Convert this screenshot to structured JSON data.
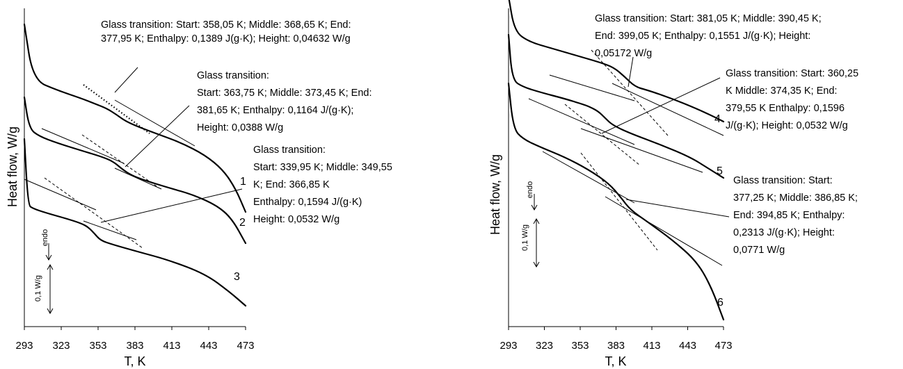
{
  "chart_data": [
    {
      "type": "line",
      "xlabel": "T, K",
      "ylabel": "Heat flow, W/g",
      "xticks": [
        "293",
        "323",
        "353",
        "383",
        "413",
        "443",
        "473"
      ],
      "xlim": [
        293,
        473
      ],
      "direction_label": "endo",
      "scale_label": "0,1 W/g",
      "series": [
        {
          "name": "1",
          "x": [
            293,
            300,
            320,
            340,
            350,
            360,
            368,
            375,
            385,
            400,
            420,
            440,
            455,
            465,
            473
          ],
          "y": [
            435,
            355,
            340,
            328,
            321,
            314,
            305,
            296,
            288,
            278,
            265,
            247,
            225,
            198,
            165
          ]
        },
        {
          "name": "2",
          "x": [
            293,
            297,
            305,
            320,
            340,
            355,
            365,
            373,
            380,
            390,
            410,
            430,
            450,
            462,
            473
          ],
          "y": [
            330,
            285,
            274,
            264,
            253,
            245,
            238,
            226,
            218,
            211,
            200,
            190,
            174,
            155,
            120
          ]
        },
        {
          "name": "3",
          "x": [
            293,
            296,
            300,
            310,
            330,
            340,
            345,
            350,
            355,
            365,
            385,
            410,
            440,
            460,
            473
          ],
          "y": [
            270,
            175,
            170,
            164,
            154,
            148,
            143,
            134,
            124,
            118,
            108,
            96,
            76,
            50,
            30
          ]
        }
      ],
      "annotations": [
        "Glass transition: Start: 358,05 K; Middle: 368,65 K; End: 377,95 K; Enthalpy: 0,1389 J(g·K); Height: 0,04632 W/g",
        "Glass transition: Start: 363,75 K; Middle: 373,45 K; End: 381,65 K; Enthalpy: 0,1164 J/(g·K); Height: 0,0388 W/g",
        "Glass transition: Start: 339,95 K; Middle: 349,55 K; End: 366,85 K Enthalpy: 0,1594 J/(g·K) Height: 0,0532 W/g"
      ]
    },
    {
      "type": "line",
      "xlabel": "T, K",
      "ylabel": "Heat flow, W/g",
      "xticks": [
        "293",
        "323",
        "353",
        "383",
        "413",
        "443",
        "473"
      ],
      "xlim": [
        293,
        473
      ],
      "direction_label": "endo",
      "scale_label": "0,1 W/g",
      "series": [
        {
          "name": "4",
          "x": [
            293,
            298,
            310,
            330,
            350,
            370,
            381,
            390,
            399,
            410,
            430,
            450,
            465,
            473
          ],
          "y": [
            475,
            425,
            410,
            400,
            390,
            380,
            373,
            360,
            345,
            340,
            328,
            314,
            302,
            295
          ]
        },
        {
          "name": "5",
          "x": [
            293,
            296,
            305,
            320,
            340,
            355,
            360,
            368,
            374,
            380,
            395,
            420,
            445,
            460,
            473
          ],
          "y": [
            420,
            355,
            345,
            337,
            328,
            320,
            317,
            310,
            300,
            290,
            278,
            262,
            244,
            228,
            214
          ]
        },
        {
          "name": "6",
          "x": [
            293,
            297,
            305,
            320,
            340,
            360,
            377,
            387,
            395,
            410,
            430,
            450,
            462,
            473
          ],
          "y": [
            350,
            285,
            270,
            258,
            244,
            226,
            206,
            186,
            168,
            150,
            125,
            95,
            60,
            10
          ]
        }
      ],
      "annotations": [
        "Glass transition: Start: 381,05 K; Middle: 390,45 K; End: 399,05 K; Enthalpy: 0,1551 J/(g·K); Height: 0,05172 W/g",
        "Glass transition: Start: 360,25 K Middle: 374,35 K; End: 379,55 K Enthalpy: 0,1596 J/(g·K); Height: 0,0532 W/g",
        "Glass transition: Start: 377,25 K; Middle: 386,85 K; End: 394,85 K; Enthalpy: 0,2313 J/(g·K); Height: 0,0771 W/g"
      ]
    }
  ],
  "left": {
    "ann1": [
      "Glass transition: Start: 358,05 K; Middle: 368,65 K; End:",
      "377,95 K; Enthalpy: 0,1389 J(g·K); Height: 0,04632 W/g"
    ],
    "ann2": [
      "Glass transition:",
      "Start: 363,75 K; Middle: 373,45 K; End:",
      "381,65 K; Enthalpy: 0,1164 J/(g·K);",
      "Height: 0,0388 W/g"
    ],
    "ann3": [
      "Glass transition:",
      "Start: 339,95 K; Middle: 349,55",
      "K; End: 366,85 K",
      "Enthalpy: 0,1594 J/(g·K)",
      "Height: 0,0532 W/g"
    ]
  },
  "right": {
    "ann4": [
      "Glass transition: Start: 381,05 K; Middle: 390,45 K;",
      "End: 399,05 K; Enthalpy: 0,1551 J/(g·K); Height:",
      "0,05172 W/g"
    ],
    "ann5": [
      "Glass transition: Start: 360,25",
      "K Middle: 374,35 K; End:",
      "379,55 K Enthalpy: 0,1596",
      "J/(g·K); Height: 0,0532 W/g"
    ],
    "ann6": [
      "Glass transition: Start:",
      "377,25 K; Middle: 386,85 K;",
      "End: 394,85 K; Enthalpy:",
      "0,2313 J/(g·K); Height:",
      "0,0771 W/g"
    ]
  }
}
